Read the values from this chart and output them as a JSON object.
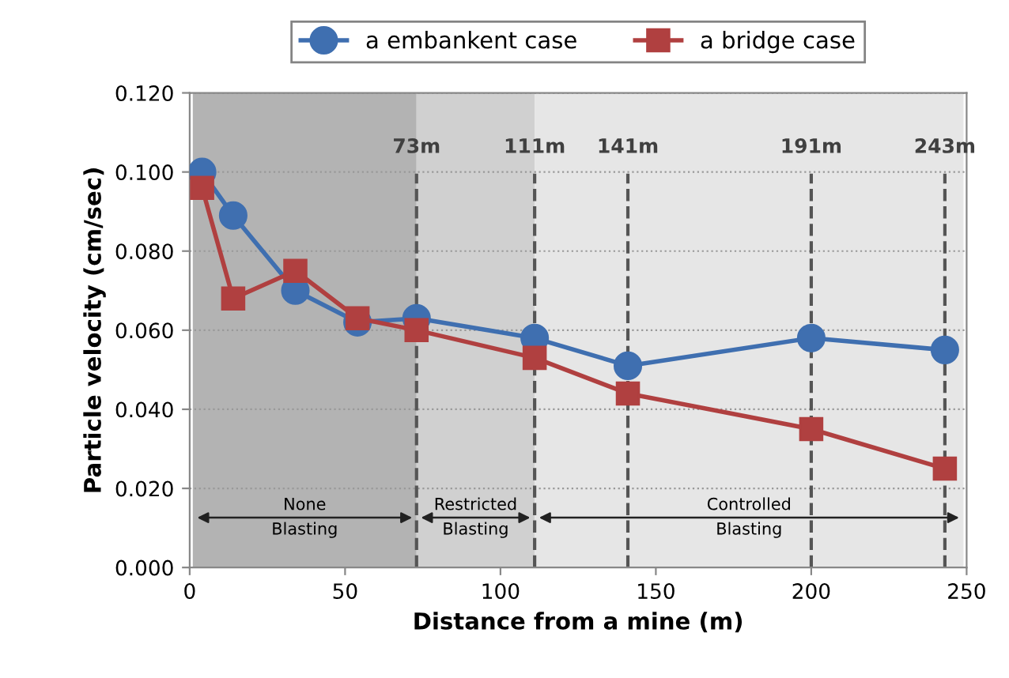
{
  "chart_data": {
    "type": "line",
    "xlabel": "Distance from a mine (m)",
    "ylabel": "Particle velocity (cm/sec)",
    "xlim": [
      0,
      250
    ],
    "xticks": [
      0,
      50,
      100,
      150,
      200,
      250
    ],
    "ylim": [
      0,
      0.12
    ],
    "yticks": [
      {
        "value": 0,
        "label": "0.000"
      },
      {
        "value": 0.02,
        "label": "0.020"
      },
      {
        "value": 0.04,
        "label": "0.040"
      },
      {
        "value": 0.06,
        "label": "0.060"
      },
      {
        "value": 0.08,
        "label": "0.080"
      },
      {
        "value": 0.1,
        "label": "0.100"
      },
      {
        "value": 0.12,
        "label": "0.120"
      }
    ],
    "grid": "y",
    "legend": "top",
    "line_style": "solid",
    "series": [
      {
        "name": "a embankent case",
        "color": "#3f6fb0",
        "marker": "circle",
        "x": [
          4,
          14,
          34,
          54,
          73,
          111,
          141,
          200,
          243
        ],
        "values": [
          0.1,
          0.089,
          0.07,
          0.062,
          0.063,
          0.058,
          0.051,
          0.058,
          0.055
        ]
      },
      {
        "name": "a bridge case",
        "color": "#b04040",
        "marker": "square",
        "x": [
          4,
          14,
          34,
          54,
          73,
          111,
          141,
          200,
          243
        ],
        "values": [
          0.096,
          0.068,
          0.075,
          0.063,
          0.06,
          0.053,
          0.044,
          0.035,
          0.025
        ]
      }
    ],
    "bands": [
      {
        "axis": "x",
        "from": 1,
        "to": 73,
        "label": "None\nBlasting",
        "color": "#b3b3b3"
      },
      {
        "axis": "x",
        "from": 73,
        "to": 111,
        "label": "Restricted\nBlasting",
        "color": "#d0d0d0"
      },
      {
        "axis": "x",
        "from": 111,
        "to": 249,
        "label": "Controlled\nBlasting",
        "color": "#e6e6e6"
      }
    ],
    "ref_lines": [
      {
        "axis": "x",
        "value": 73,
        "label": "73m",
        "line_style": "dashed",
        "color": "#555555"
      },
      {
        "axis": "x",
        "value": 111,
        "label": "111m",
        "line_style": "dashed",
        "color": "#555555"
      },
      {
        "axis": "x",
        "value": 141,
        "label": "141m",
        "line_style": "dashed",
        "color": "#555555"
      },
      {
        "axis": "x",
        "value": 200,
        "label": "191m",
        "line_style": "dashed",
        "color": "#555555"
      },
      {
        "axis": "x",
        "value": 243,
        "label": "243m",
        "line_style": "dashed",
        "color": "#555555"
      }
    ]
  }
}
